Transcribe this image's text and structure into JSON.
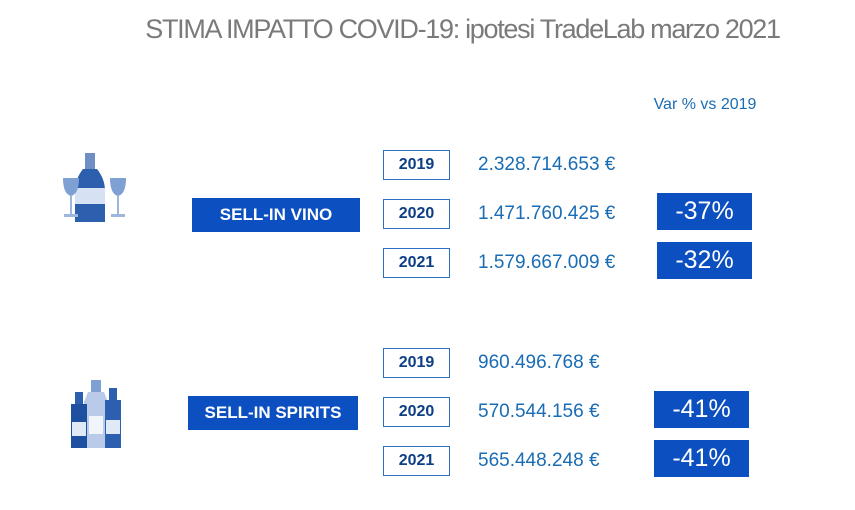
{
  "header": {
    "title": "STIMA IMPATTO COVID-19: ipotesi TradeLab marzo 2021",
    "column_title": "Var % vs 2019"
  },
  "sections": [
    {
      "label": "SELL-IN VINO",
      "rows": [
        {
          "year": "2019",
          "value": "2.328.714.653 €"
        },
        {
          "year": "2020",
          "value": "1.471.760.425 €",
          "var": "-37%"
        },
        {
          "year": "2021",
          "value": "1.579.667.009 €",
          "var": "-32%"
        }
      ]
    },
    {
      "label": "SELL-IN SPIRITS",
      "rows": [
        {
          "year": "2019",
          "value": "960.496.768 €"
        },
        {
          "year": "2020",
          "value": "570.544.156 €",
          "var": "-41%"
        },
        {
          "year": "2021",
          "value": "565.448.248 €",
          "var": "-41%"
        }
      ]
    }
  ]
}
